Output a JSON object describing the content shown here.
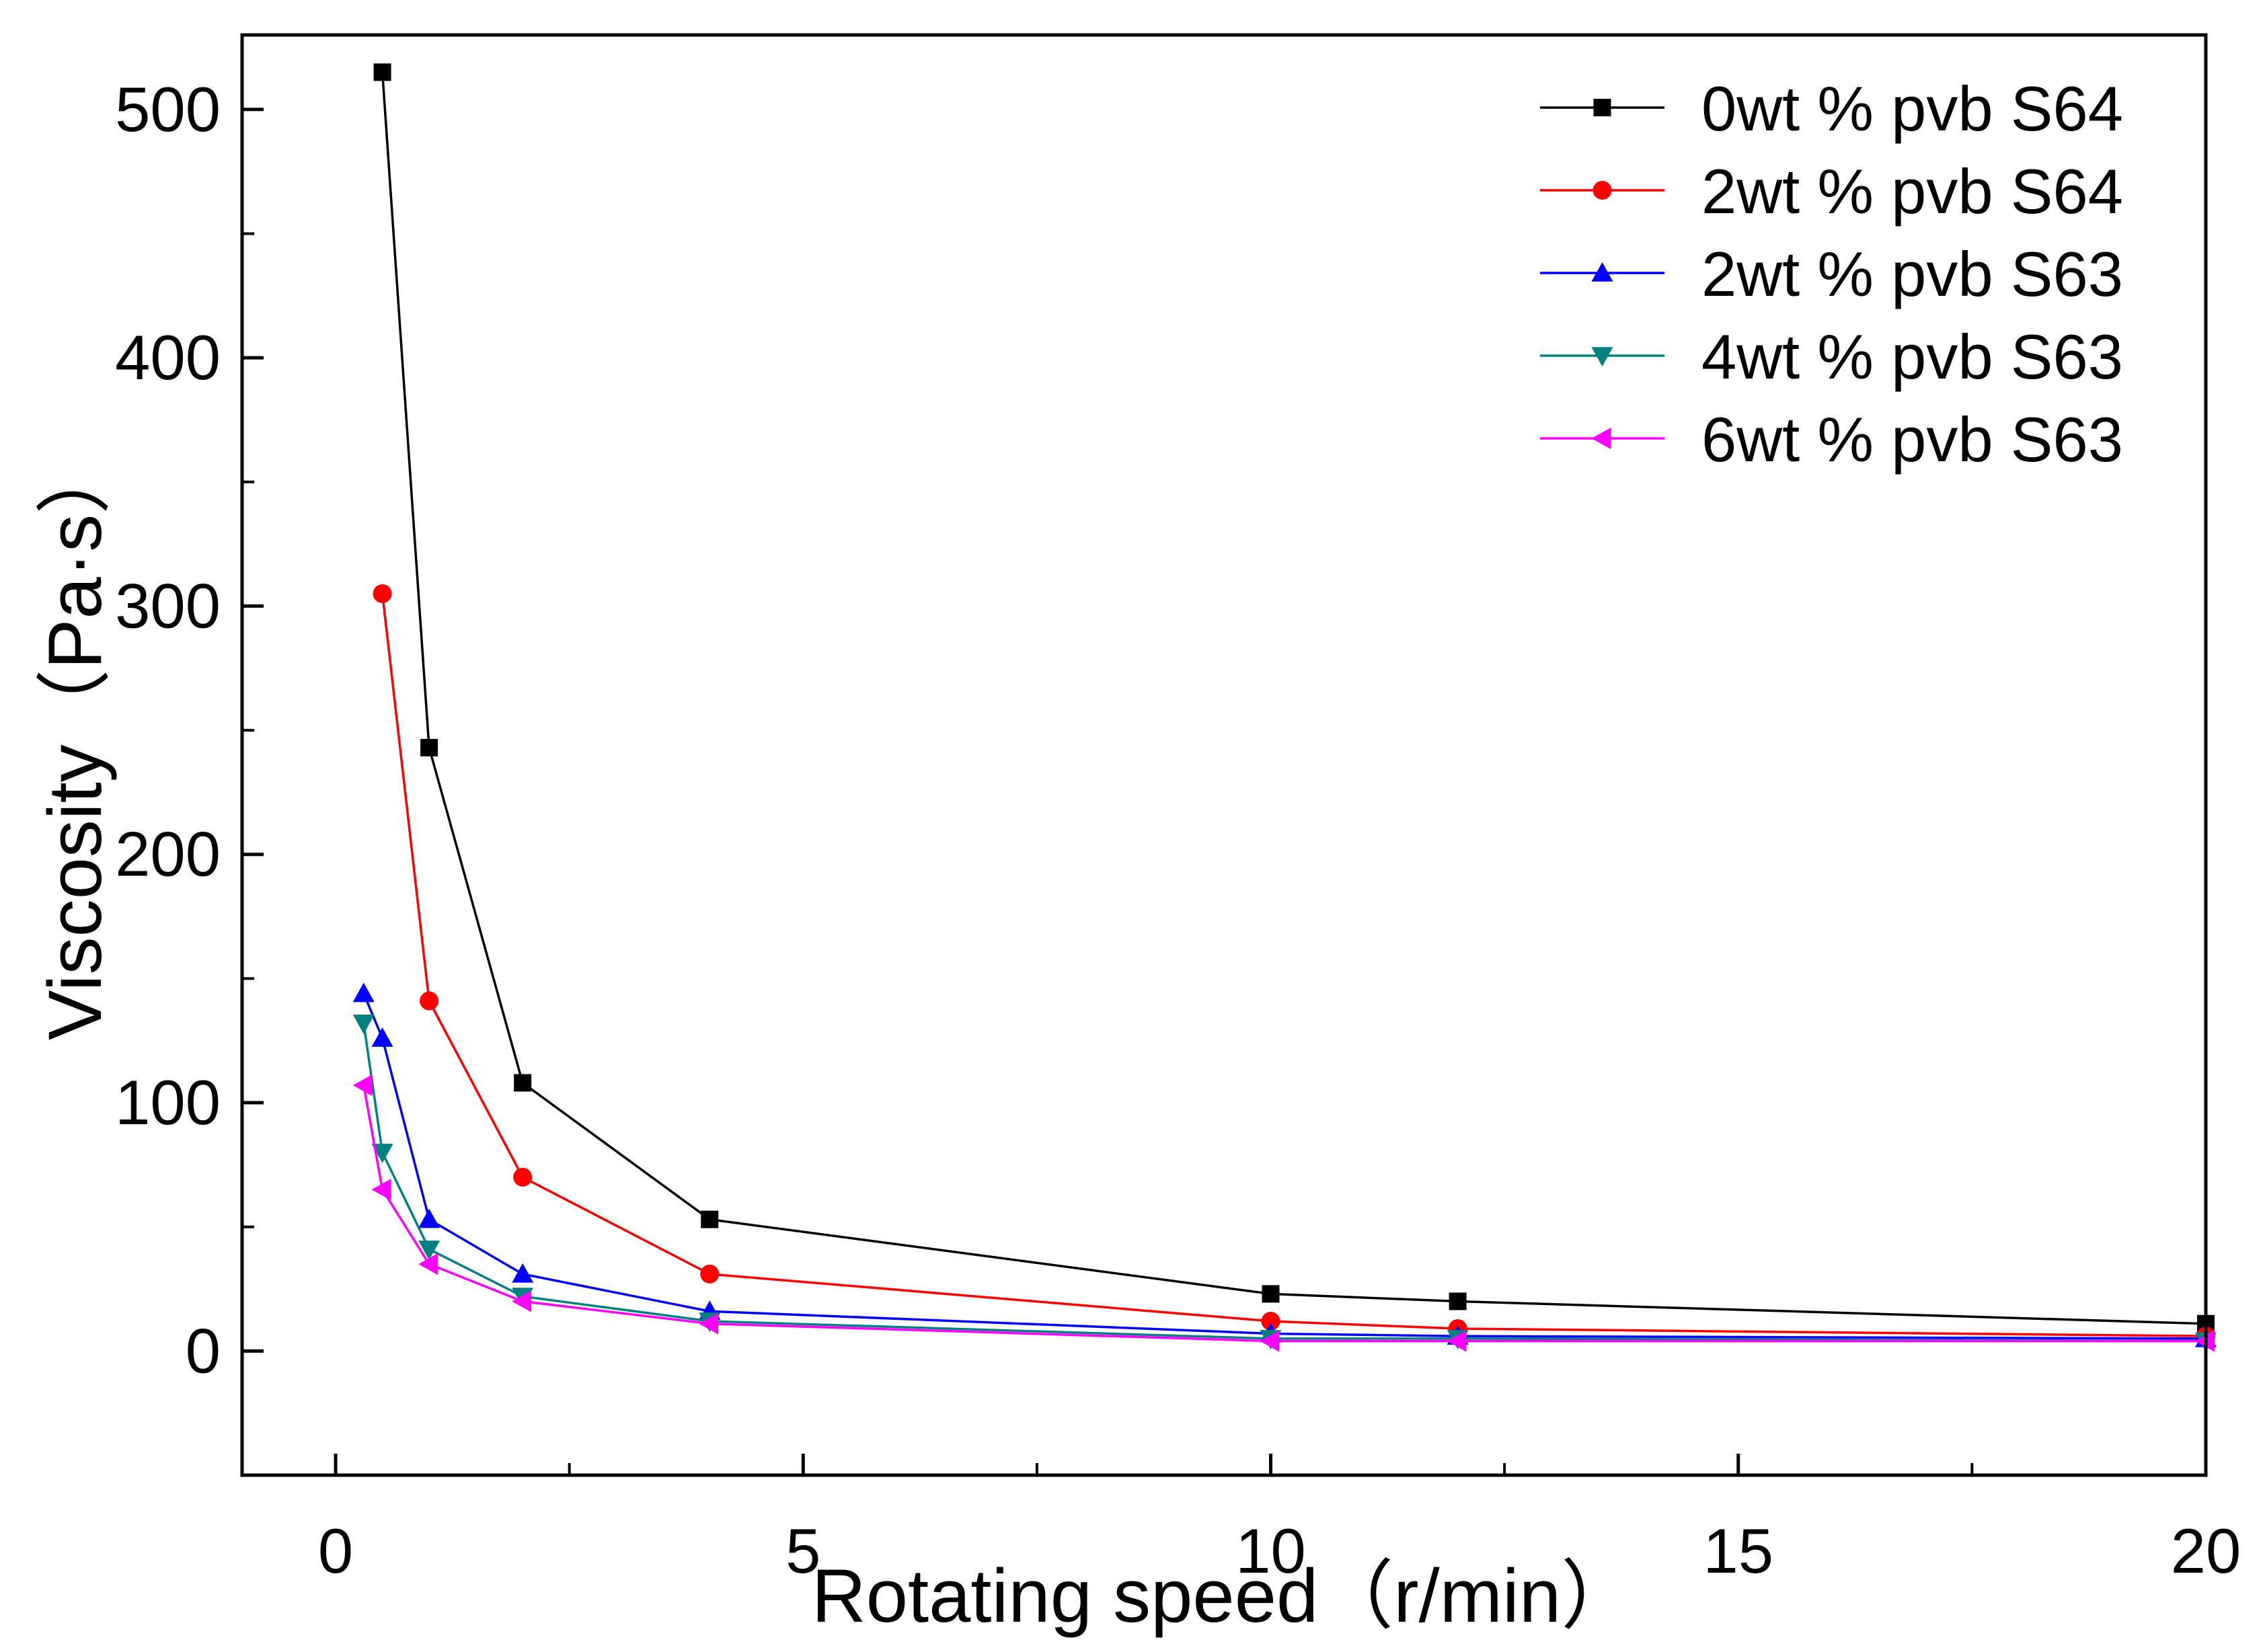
{
  "chart_data": {
    "type": "line",
    "title": "",
    "xlabel": "Rotating speed（r/min）",
    "ylabel": "Viscosity（Pa·s）",
    "xlim": [
      -1,
      20
    ],
    "ylim": [
      -50,
      530
    ],
    "x_ticks": [
      "0",
      "5",
      "10",
      "15",
      "20"
    ],
    "x_tick_values": [
      0,
      5,
      10,
      15,
      20
    ],
    "y_ticks": [
      "0",
      "100",
      "200",
      "300",
      "400",
      "500"
    ],
    "y_tick_values": [
      0,
      100,
      200,
      300,
      400,
      500
    ],
    "grid": false,
    "legend_position": "top-right",
    "series": [
      {
        "name": "0wt % pvb S64",
        "color": "#000000",
        "marker": "square",
        "x": [
          0.5,
          1,
          2,
          4,
          10,
          12,
          20
        ],
        "y": [
          515,
          243,
          108,
          53,
          23,
          20,
          11
        ]
      },
      {
        "name": "2wt % pvb S64",
        "color": "#ff0000",
        "marker": "circle",
        "x": [
          0.5,
          1,
          2,
          4,
          10,
          12,
          20
        ],
        "y": [
          305,
          141,
          70,
          31,
          12,
          9,
          6
        ]
      },
      {
        "name": "2wt % pvb S63",
        "color": "#0000ff",
        "marker": "triangle-up",
        "x": [
          0.3,
          0.5,
          1,
          2,
          4,
          10,
          12,
          20
        ],
        "y": [
          144,
          126,
          53,
          31,
          16,
          7,
          6,
          5
        ]
      },
      {
        "name": "4wt % pvb S63",
        "color": "#008080",
        "marker": "triangle-down",
        "x": [
          0.3,
          0.5,
          1,
          2,
          4,
          10,
          12,
          20
        ],
        "y": [
          132,
          80,
          41,
          22,
          12,
          5,
          5,
          4
        ]
      },
      {
        "name": "6wt % pvb S63",
        "color": "#ff00ff",
        "marker": "triangle-left",
        "x": [
          0.3,
          0.5,
          1,
          2,
          4,
          10,
          12,
          20
        ],
        "y": [
          107,
          65,
          35,
          20,
          11,
          4,
          4,
          4
        ]
      }
    ]
  }
}
